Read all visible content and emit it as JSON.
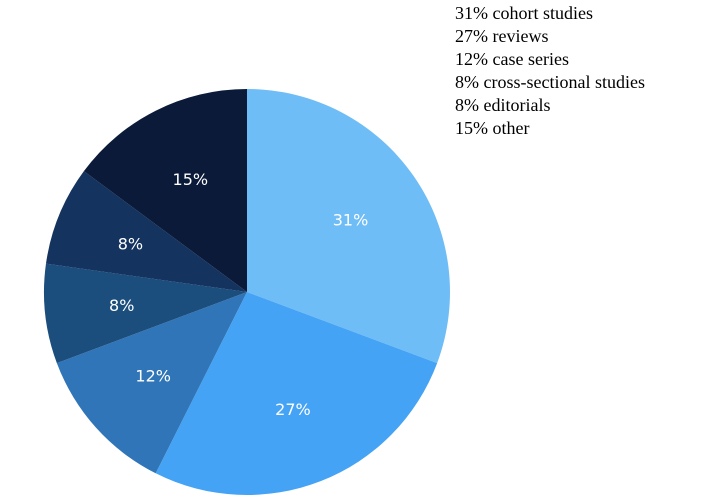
{
  "chart_data": {
    "type": "pie",
    "categories": [
      "cohort studies",
      "reviews",
      "case series",
      "cross-sectional studies",
      "editorials",
      "other"
    ],
    "values": [
      31,
      27,
      12,
      8,
      8,
      15
    ],
    "unit": "%",
    "colors": [
      "#6fbdf6",
      "#45a3f5",
      "#3075b7",
      "#1b4d7d",
      "#14335f",
      "#0a1a38"
    ],
    "slice_labels": [
      "31%",
      "27%",
      "12%",
      "8%",
      "8%",
      "15%"
    ],
    "legend": {
      "placement": "top-right",
      "entries": [
        "31% cohort studies",
        "27% reviews",
        "12% case series",
        "8% cross-sectional studies",
        "8% editorials",
        "15% other"
      ]
    },
    "title": "",
    "start_angle": "top",
    "direction": "clockwise"
  }
}
